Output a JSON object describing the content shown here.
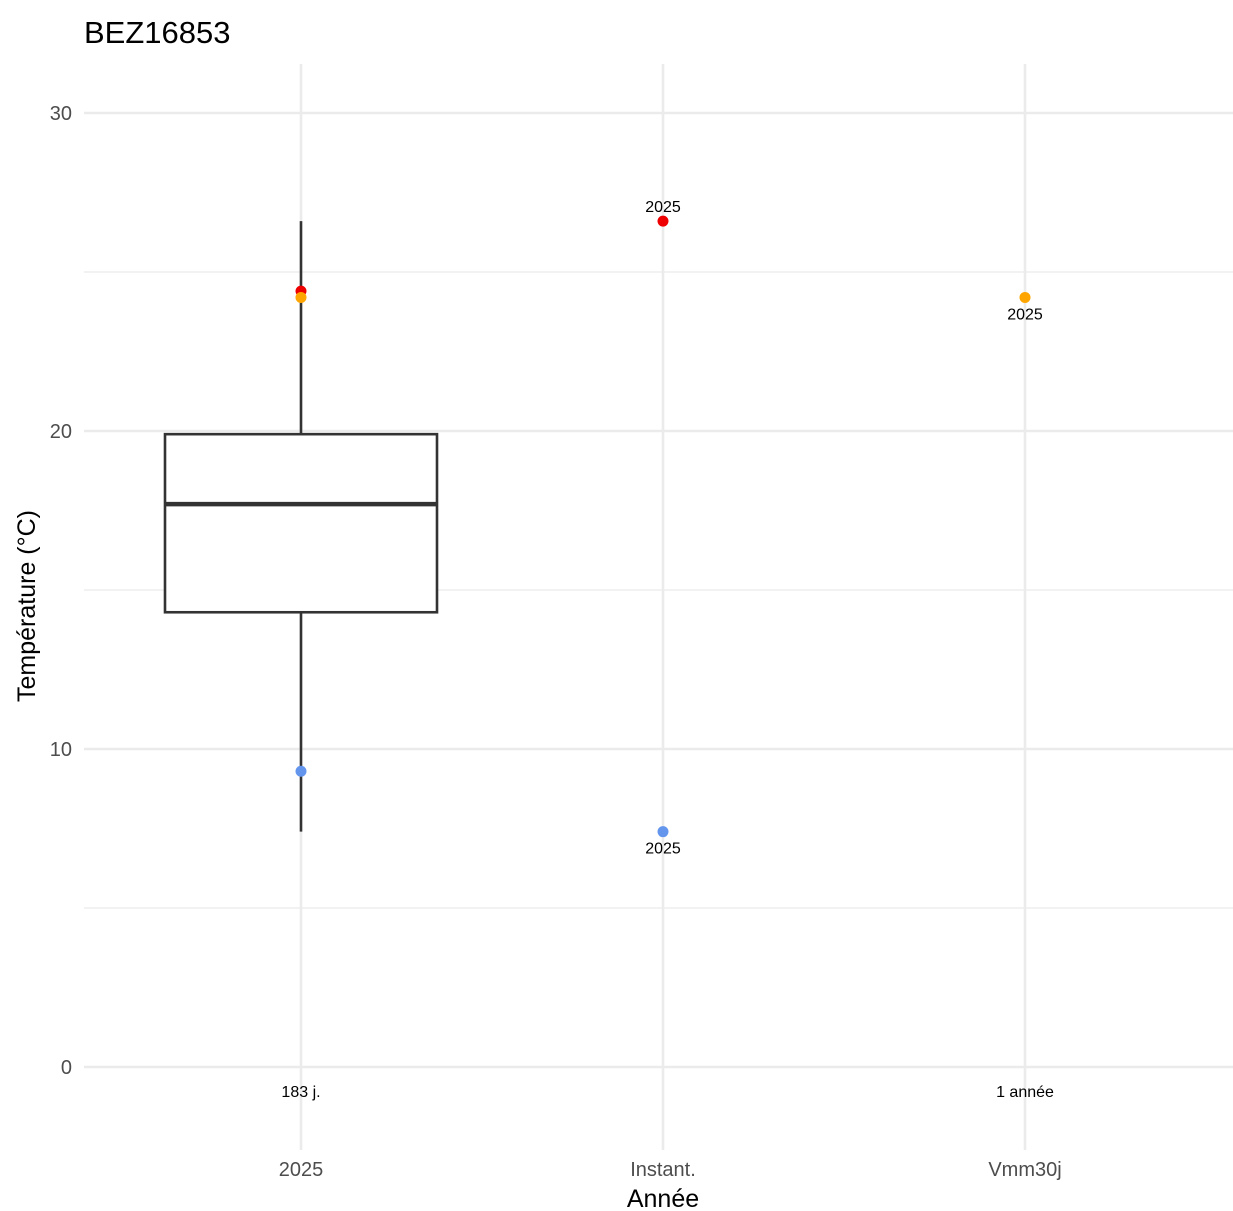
{
  "chart_data": {
    "type": "box",
    "title": "BEZ16853",
    "xlabel": "Année",
    "ylabel": "Température (°C)",
    "ylim": [
      -2.6,
      31.6
    ],
    "yticks": [
      0,
      10,
      20,
      30
    ],
    "grid": true,
    "categories": [
      "2025",
      "Instant.",
      "Vmm30j"
    ],
    "box": {
      "category": "2025",
      "lower_whisker": 7.4,
      "q1": 14.3,
      "median": 17.7,
      "q3": 19.9,
      "upper_whisker": 26.6
    },
    "points": [
      {
        "category": "2025",
        "y": 24.4,
        "color": "#ee0000",
        "label": ""
      },
      {
        "category": "2025",
        "y": 24.2,
        "color": "#ffa500",
        "label": ""
      },
      {
        "category": "2025",
        "y": 9.3,
        "color": "#6495ed",
        "label": ""
      },
      {
        "category": "Instant.",
        "y": 26.6,
        "color": "#ee0000",
        "label": "2025",
        "label_pos": "above"
      },
      {
        "category": "Instant.",
        "y": 7.4,
        "color": "#6495ed",
        "label": "2025",
        "label_pos": "below"
      },
      {
        "category": "Vmm30j",
        "y": 24.2,
        "color": "#ffa500",
        "label": "2025",
        "label_pos": "below"
      }
    ],
    "count_labels": [
      {
        "category": "2025",
        "text": "183 j."
      },
      {
        "category": "Vmm30j",
        "text": "1 année"
      }
    ]
  }
}
